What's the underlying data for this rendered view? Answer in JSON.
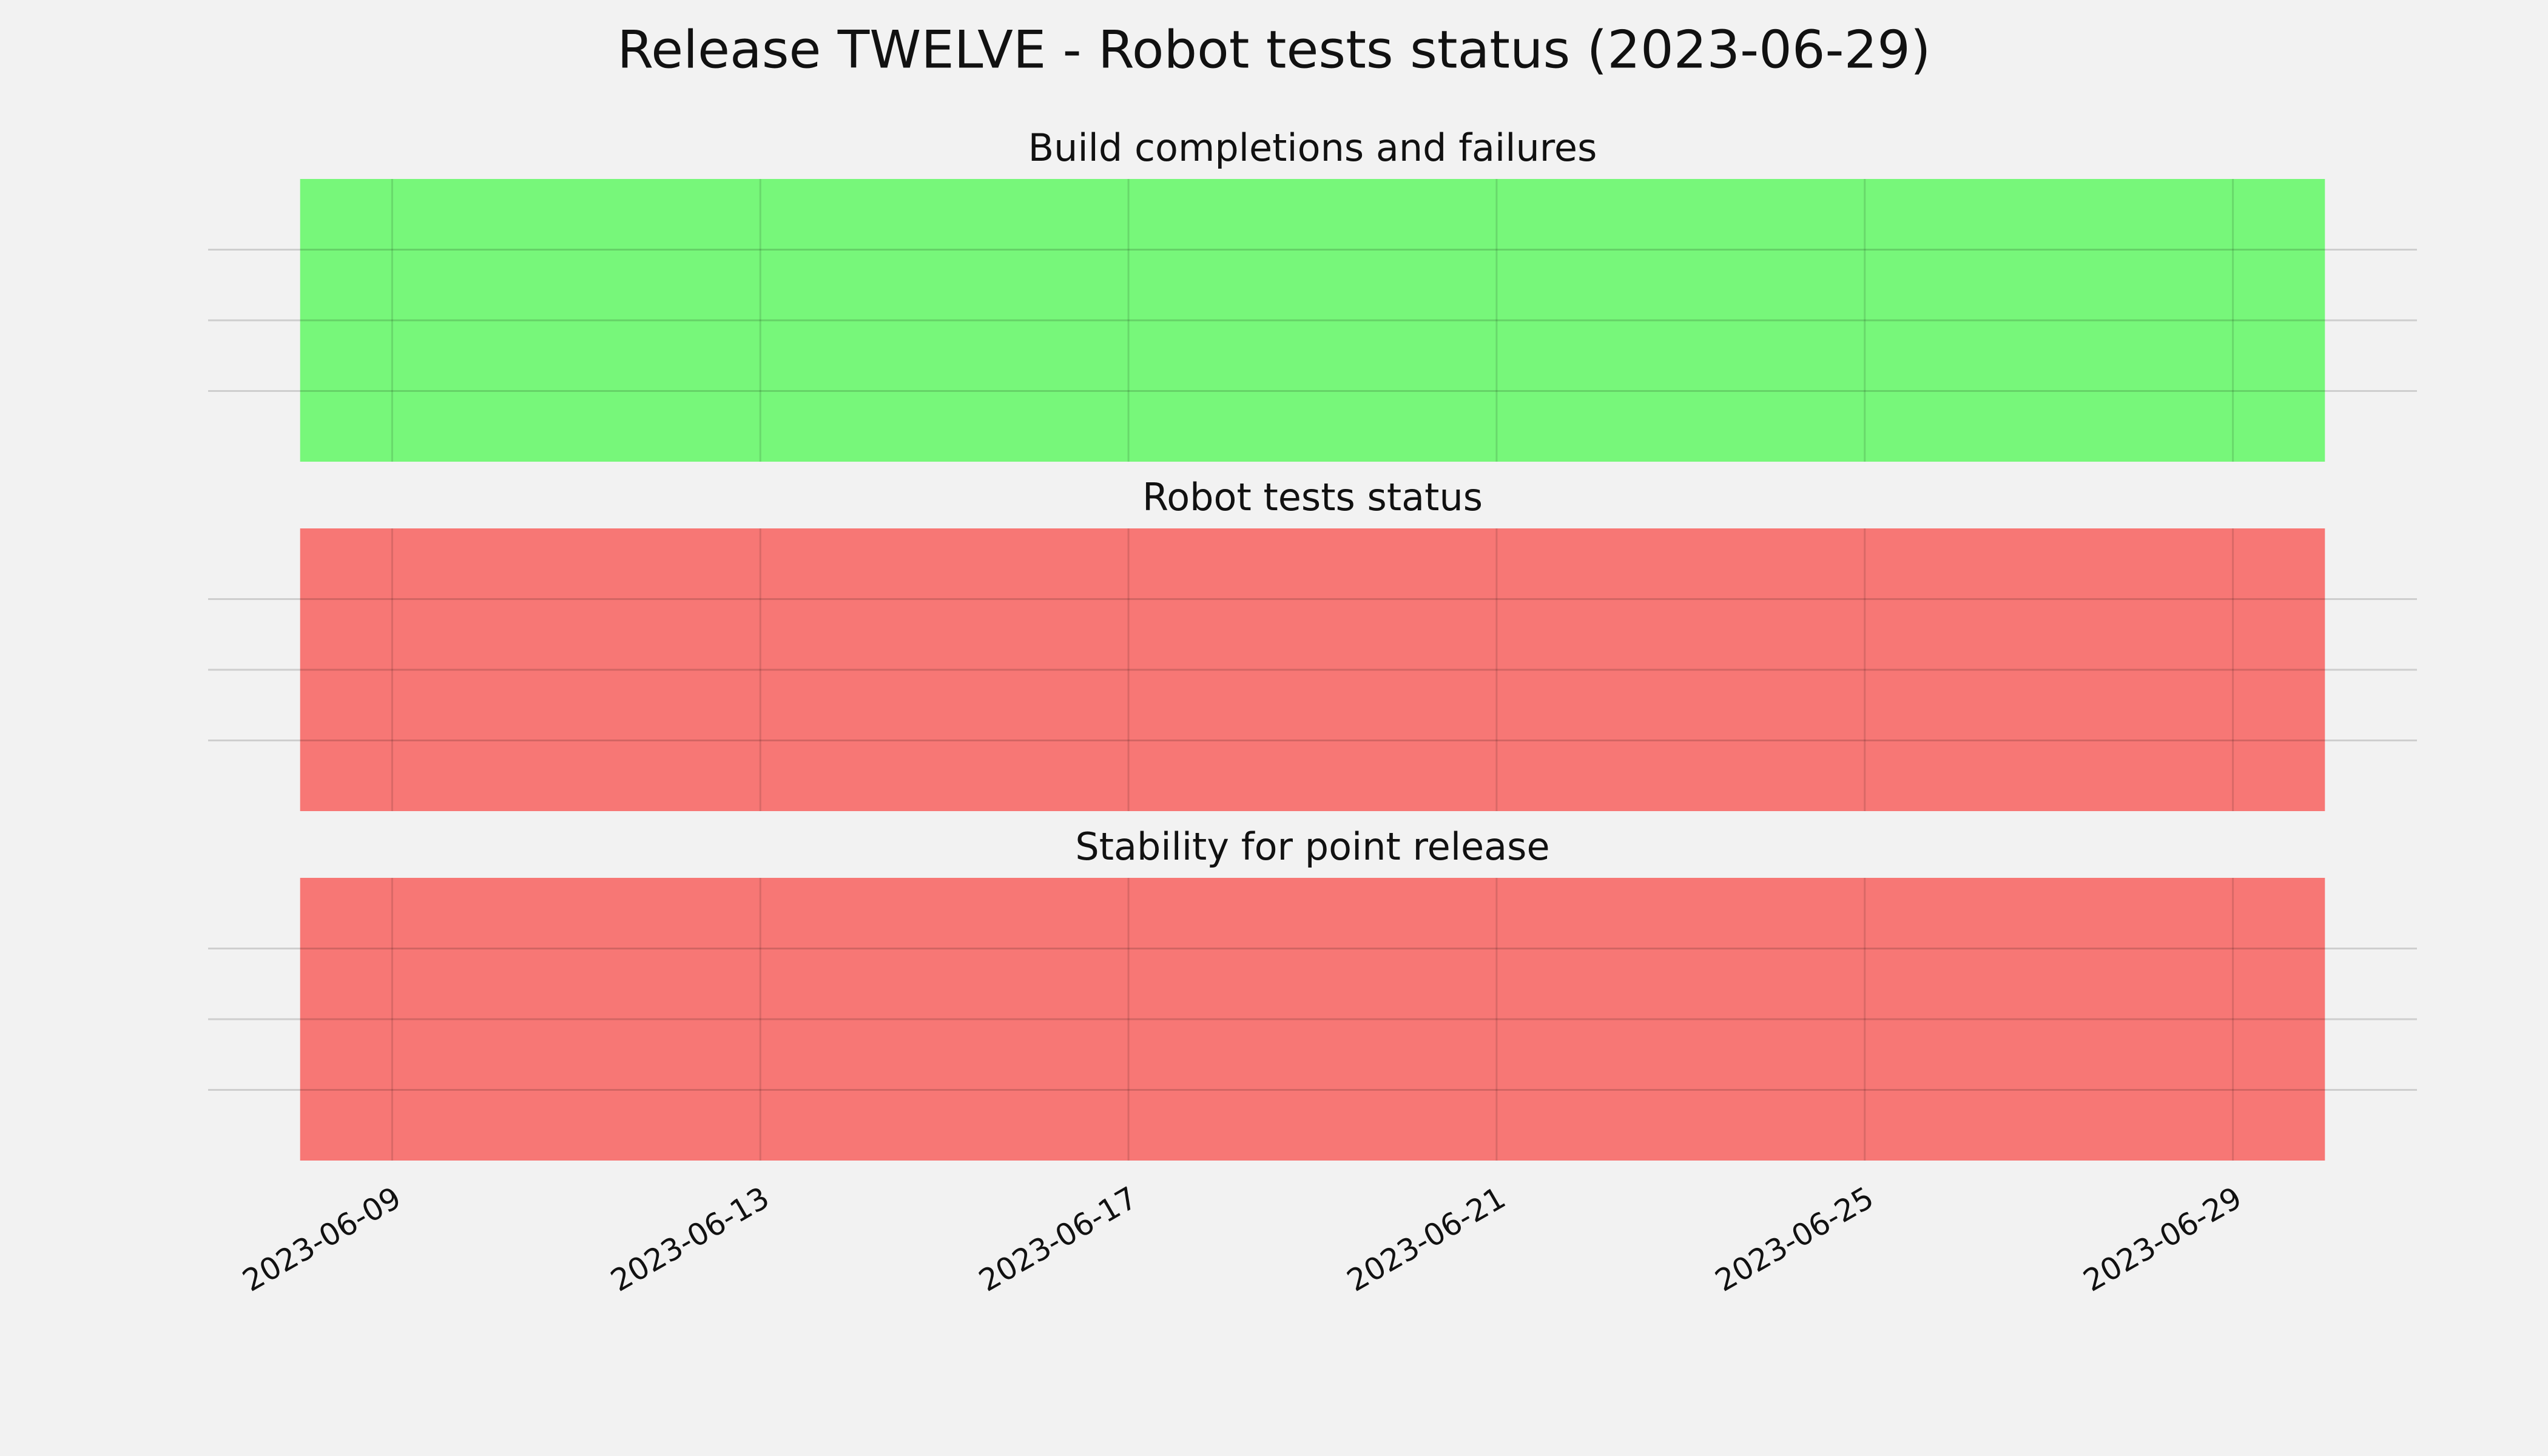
{
  "title": "Release TWELVE - Robot tests status (2023-06-29)",
  "chart_data": [
    {
      "type": "span",
      "title": "Build completions and failures",
      "spans": [
        {
          "start": "2023-06-08",
          "end": "2023-06-30",
          "color": "#77f77a"
        }
      ],
      "xlim": [
        "2023-06-07",
        "2023-07-01"
      ],
      "xticks": [
        "2023-06-09",
        "2023-06-13",
        "2023-06-17",
        "2023-06-21",
        "2023-06-25",
        "2023-06-29"
      ],
      "ylim": [
        0,
        1
      ],
      "yticks": [
        0.25,
        0.5,
        0.75
      ],
      "grid": true
    },
    {
      "type": "span",
      "title": "Robot tests status",
      "spans": [
        {
          "start": "2023-06-08",
          "end": "2023-06-30",
          "color": "#f77775"
        }
      ],
      "xlim": [
        "2023-06-07",
        "2023-07-01"
      ],
      "xticks": [
        "2023-06-09",
        "2023-06-13",
        "2023-06-17",
        "2023-06-21",
        "2023-06-25",
        "2023-06-29"
      ],
      "ylim": [
        0,
        1
      ],
      "yticks": [
        0.25,
        0.5,
        0.75
      ],
      "grid": true
    },
    {
      "type": "span",
      "title": "Stability for point release",
      "spans": [
        {
          "start": "2023-06-08",
          "end": "2023-06-30",
          "color": "#f77775"
        }
      ],
      "xlim": [
        "2023-06-07",
        "2023-07-01"
      ],
      "xticks": [
        "2023-06-09",
        "2023-06-13",
        "2023-06-17",
        "2023-06-21",
        "2023-06-25",
        "2023-06-29"
      ],
      "ylim": [
        0,
        1
      ],
      "yticks": [
        0.25,
        0.5,
        0.75
      ],
      "grid": true
    }
  ]
}
